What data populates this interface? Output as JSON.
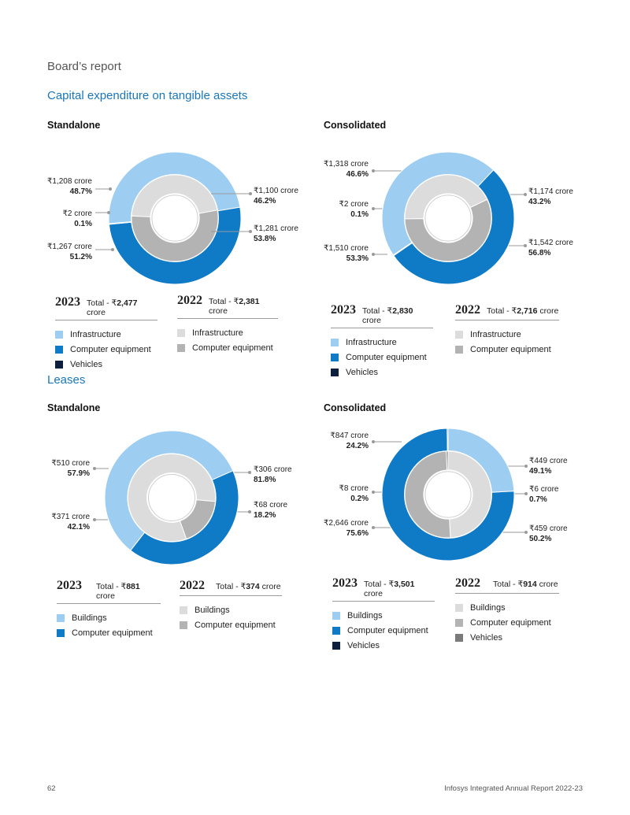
{
  "header": {
    "section": "Board’s report"
  },
  "capex": {
    "title": "Capital expenditure on tangible assets",
    "standalone": {
      "label": "Standalone",
      "chart_index": 0,
      "ann": [
        {
          "v": "₹1,208 crore",
          "p": "48.7%"
        },
        {
          "v": "₹2 crore",
          "p": "0.1%"
        },
        {
          "v": "₹1,267 crore",
          "p": "51.2%"
        },
        {
          "v": "₹1,100 crore",
          "p": "46.2%"
        },
        {
          "v": "₹1,281 crore",
          "p": "53.8%"
        }
      ],
      "legend_2023": {
        "year": "2023",
        "total_prefix": "Total - ₹",
        "total_value": "2,477",
        "total_suffix": " crore",
        "items": [
          "Infrastructure",
          "Computer equipment",
          "Vehicles"
        ]
      },
      "legend_2022": {
        "year": "2022",
        "total_prefix": "Total - ₹",
        "total_value": "2,381",
        "total_suffix": " crore",
        "items": [
          "Infrastructure",
          "Computer equipment"
        ]
      }
    },
    "consolidated": {
      "label": "Consolidated",
      "ann": [
        {
          "v": "₹1,318 crore",
          "p": "46.6%"
        },
        {
          "v": "₹2 crore",
          "p": "0.1%"
        },
        {
          "v": "₹1,510 crore",
          "p": "53.3%"
        },
        {
          "v": "₹1,174 crore",
          "p": "43.2%"
        },
        {
          "v": "₹1,542 crore",
          "p": "56.8%"
        }
      ],
      "legend_2023": {
        "year": "2023",
        "total_prefix": "Total - ₹",
        "total_value": "2,830",
        "total_suffix": " crore",
        "items": [
          "Infrastructure",
          "Computer equipment",
          "Vehicles"
        ]
      },
      "legend_2022": {
        "year": "2022",
        "total_prefix": "Total - ₹",
        "total_value": "2,716",
        "total_suffix": " crore",
        "items": [
          "Infrastructure",
          "Computer equipment"
        ]
      }
    }
  },
  "leases": {
    "title": "Leases",
    "standalone": {
      "label": "Standalone",
      "ann": [
        {
          "v": "₹510 crore",
          "p": "57.9%"
        },
        {
          "v": "₹371 crore",
          "p": "42.1%"
        },
        {
          "v": "₹306 crore",
          "p": "81.8%"
        },
        {
          "v": "₹68 crore",
          "p": "18.2%"
        }
      ],
      "legend_2023": {
        "year": "2023",
        "total_prefix": "Total - ₹",
        "total_value": "881",
        "total_suffix": " crore",
        "items": [
          "Buildings",
          "Computer equipment"
        ]
      },
      "legend_2022": {
        "year": "2022",
        "total_prefix": "Total - ₹",
        "total_value": "374",
        "total_suffix": " crore",
        "items": [
          "Buildings",
          "Computer equipment"
        ]
      }
    },
    "consolidated": {
      "label": "Consolidated",
      "ann": [
        {
          "v": "₹847 crore",
          "p": "24.2%"
        },
        {
          "v": "₹8 crore",
          "p": "0.2%"
        },
        {
          "v": "₹2,646 crore",
          "p": "75.6%"
        },
        {
          "v": "₹449 crore",
          "p": "49.1%"
        },
        {
          "v": "₹6 crore",
          "p": "0.7%"
        },
        {
          "v": "₹459 crore",
          "p": "50.2%"
        }
      ],
      "legend_2023": {
        "year": "2023",
        "total_prefix": "Total - ₹",
        "total_value": "3,501",
        "total_suffix": " crore",
        "items": [
          "Buildings",
          "Computer equipment",
          "Vehicles"
        ]
      },
      "legend_2022": {
        "year": "2022",
        "total_prefix": "Total - ₹",
        "total_value": "914",
        "total_suffix": " crore",
        "items": [
          "Buildings",
          "Computer equipment",
          "Vehicles"
        ]
      }
    }
  },
  "footer": {
    "page": "62",
    "report": "Infosys Integrated Annual Report 2022-23"
  },
  "colors": {
    "outer": [
      "#9dcdf0",
      "#0f7ac6",
      "#0d1f3c"
    ],
    "inner": [
      "#dcdcdc",
      "#b3b3b3",
      "#7a7a7a"
    ]
  },
  "chart_data": [
    {
      "type": "pie",
      "title": "Capital expenditure on tangible assets - Standalone",
      "series": [
        {
          "name": "2023",
          "labels": [
            "Infrastructure",
            "Computer equipment",
            "Vehicles"
          ],
          "values": [
            1208,
            1267,
            2
          ],
          "percent": [
            48.7,
            51.2,
            0.1
          ]
        },
        {
          "name": "2022",
          "labels": [
            "Infrastructure",
            "Computer equipment"
          ],
          "values": [
            1100,
            1281
          ],
          "percent": [
            46.2,
            53.8
          ]
        }
      ]
    },
    {
      "type": "pie",
      "title": "Capital expenditure on tangible assets - Consolidated",
      "series": [
        {
          "name": "2023",
          "labels": [
            "Infrastructure",
            "Computer equipment",
            "Vehicles"
          ],
          "values": [
            1318,
            1510,
            2
          ],
          "percent": [
            46.6,
            53.3,
            0.1
          ]
        },
        {
          "name": "2022",
          "labels": [
            "Infrastructure",
            "Computer equipment"
          ],
          "values": [
            1174,
            1542
          ],
          "percent": [
            43.2,
            56.8
          ]
        }
      ]
    },
    {
      "type": "pie",
      "title": "Leases - Standalone",
      "series": [
        {
          "name": "2023",
          "labels": [
            "Buildings",
            "Computer equipment"
          ],
          "values": [
            510,
            371
          ],
          "percent": [
            57.9,
            42.1
          ]
        },
        {
          "name": "2022",
          "labels": [
            "Buildings",
            "Computer equipment"
          ],
          "values": [
            306,
            68
          ],
          "percent": [
            81.8,
            18.2
          ]
        }
      ]
    },
    {
      "type": "pie",
      "title": "Leases - Consolidated",
      "series": [
        {
          "name": "2023",
          "labels": [
            "Buildings",
            "Computer equipment",
            "Vehicles"
          ],
          "values": [
            847,
            2646,
            8
          ],
          "percent": [
            24.2,
            75.6,
            0.2
          ]
        },
        {
          "name": "2022",
          "labels": [
            "Buildings",
            "Computer equipment",
            "Vehicles"
          ],
          "values": [
            449,
            459,
            6
          ],
          "percent": [
            49.1,
            50.2,
            0.7
          ]
        }
      ]
    }
  ]
}
